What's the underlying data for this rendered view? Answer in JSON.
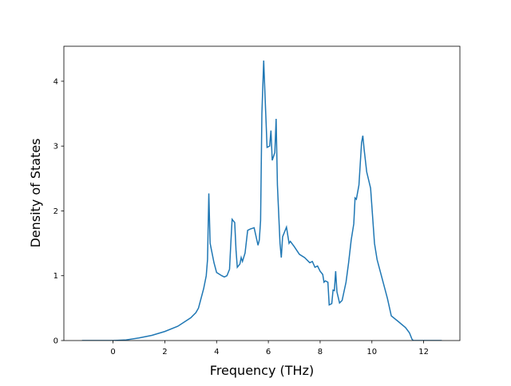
{
  "chart_data": {
    "type": "line",
    "xlabel": "Frequency (THz)",
    "ylabel": "Density of States",
    "x": [
      -1.2,
      0,
      0.5,
      1,
      1.5,
      2,
      2.5,
      3,
      3.2,
      3.3,
      3.5,
      3.6,
      3.65,
      3.7,
      3.75,
      3.85,
      3.9,
      4.0,
      4.2,
      4.3,
      4.4,
      4.5,
      4.55,
      4.6,
      4.7,
      4.75,
      4.8,
      4.9,
      4.95,
      5.0,
      5.1,
      5.2,
      5.3,
      5.45,
      5.5,
      5.6,
      5.65,
      5.7,
      5.75,
      5.82,
      5.85,
      5.95,
      6.05,
      6.1,
      6.15,
      6.25,
      6.3,
      6.35,
      6.45,
      6.5,
      6.55,
      6.7,
      6.8,
      6.85,
      7.0,
      7.2,
      7.4,
      7.6,
      7.7,
      7.8,
      7.9,
      8.0,
      8.1,
      8.15,
      8.2,
      8.3,
      8.35,
      8.45,
      8.5,
      8.55,
      8.6,
      8.65,
      8.75,
      8.85,
      9.0,
      9.1,
      9.2,
      9.3,
      9.35,
      9.4,
      9.5,
      9.6,
      9.65,
      9.7,
      9.8,
      9.95,
      10.1,
      10.2,
      10.4,
      10.6,
      10.75,
      11.0,
      11.3,
      11.45,
      11.55,
      11.6,
      12.7
    ],
    "series": [
      {
        "color": "#1f77b4",
        "values": [
          0,
          0,
          0.01,
          0.04,
          0.08,
          0.14,
          0.22,
          0.35,
          0.43,
          0.5,
          0.8,
          1.0,
          1.25,
          2.27,
          1.5,
          1.3,
          1.2,
          1.05,
          1.0,
          0.98,
          1.0,
          1.1,
          1.5,
          1.87,
          1.82,
          1.4,
          1.13,
          1.18,
          1.28,
          1.22,
          1.35,
          1.7,
          1.72,
          1.74,
          1.65,
          1.47,
          1.55,
          1.85,
          3.5,
          4.32,
          4.0,
          2.98,
          3.0,
          3.24,
          2.78,
          2.9,
          3.42,
          2.4,
          1.5,
          1.28,
          1.6,
          1.75,
          1.5,
          1.53,
          1.45,
          1.33,
          1.28,
          1.2,
          1.22,
          1.13,
          1.15,
          1.07,
          1.02,
          0.9,
          0.92,
          0.9,
          0.55,
          0.57,
          0.78,
          0.77,
          1.07,
          0.75,
          0.58,
          0.62,
          0.9,
          1.2,
          1.55,
          1.8,
          2.2,
          2.18,
          2.4,
          3.05,
          3.16,
          2.95,
          2.6,
          2.35,
          1.5,
          1.25,
          0.95,
          0.65,
          0.38,
          0.3,
          0.2,
          0.12,
          0.02,
          0,
          0
        ]
      }
    ],
    "xlim": [
      -1.9,
      13.4
    ],
    "xticks": [
      0,
      2,
      4,
      6,
      8,
      10,
      12
    ],
    "ylim": [
      0,
      4.54
    ],
    "yticks": [
      0,
      1,
      2,
      3,
      4
    ]
  }
}
